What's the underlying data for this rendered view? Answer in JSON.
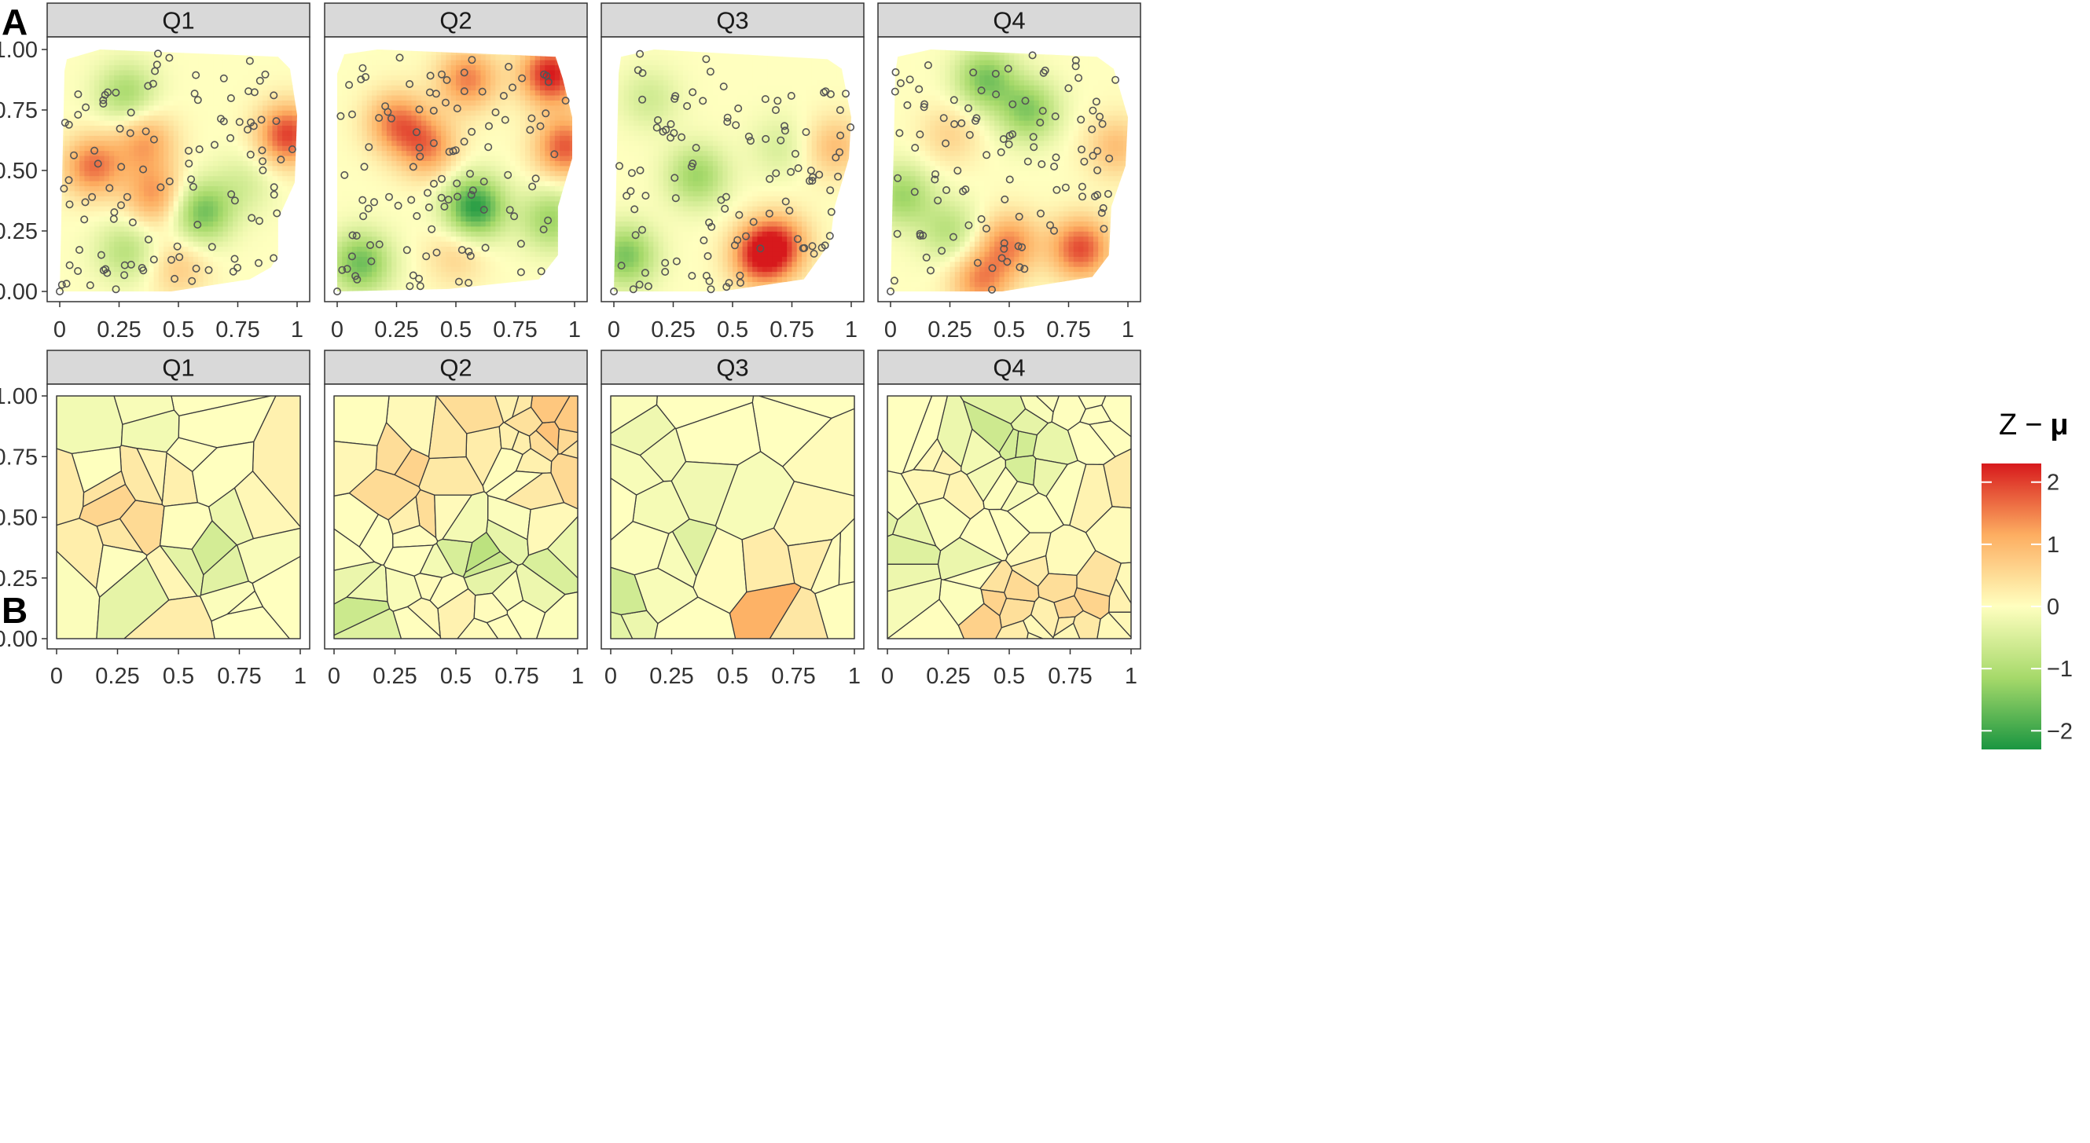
{
  "chart_data": [
    {
      "panel_label": "A",
      "type": "heatmap",
      "facets": [
        "Q1",
        "Q2",
        "Q3",
        "Q4"
      ],
      "x_ticks": [
        "0",
        "0.25",
        "0.5",
        "0.75",
        "1"
      ],
      "y_ticks": [
        "0.00",
        "0.25",
        "0.50",
        "0.75",
        "1.00"
      ],
      "xlim": [
        0,
        1
      ],
      "ylim": [
        0,
        1
      ],
      "points_shown": true,
      "hotspots": [
        [
          {
            "x": 0.14,
            "y": 0.52,
            "v": 1.6
          },
          {
            "x": 0.36,
            "y": 0.62,
            "v": 1.2
          },
          {
            "x": 0.4,
            "y": 0.4,
            "v": 1.3
          },
          {
            "x": 0.96,
            "y": 0.65,
            "v": 2.0
          },
          {
            "x": 0.6,
            "y": 0.33,
            "v": -1.6
          },
          {
            "x": 0.28,
            "y": 0.82,
            "v": -1.1
          },
          {
            "x": 0.28,
            "y": 0.17,
            "v": -0.9
          },
          {
            "x": 0.78,
            "y": 0.45,
            "v": -0.5
          },
          {
            "x": 0.5,
            "y": 0.1,
            "v": 0.7
          }
        ],
        [
          {
            "x": 0.9,
            "y": 0.9,
            "v": 2.3
          },
          {
            "x": 0.55,
            "y": 0.88,
            "v": 1.5
          },
          {
            "x": 0.25,
            "y": 0.7,
            "v": 1.5
          },
          {
            "x": 0.38,
            "y": 0.6,
            "v": 1.4
          },
          {
            "x": 0.96,
            "y": 0.6,
            "v": 1.8
          },
          {
            "x": 0.58,
            "y": 0.35,
            "v": -2.2
          },
          {
            "x": 0.1,
            "y": 0.12,
            "v": -1.6
          },
          {
            "x": 0.9,
            "y": 0.3,
            "v": -1.2
          },
          {
            "x": 0.5,
            "y": 0.15,
            "v": 0.6
          }
        ],
        [
          {
            "x": 0.62,
            "y": 0.15,
            "v": 2.0
          },
          {
            "x": 0.7,
            "y": 0.2,
            "v": 1.4
          },
          {
            "x": 0.35,
            "y": 0.48,
            "v": -1.2
          },
          {
            "x": 0.05,
            "y": 0.15,
            "v": -1.5
          },
          {
            "x": 0.93,
            "y": 0.6,
            "v": 0.9
          },
          {
            "x": 0.7,
            "y": 0.6,
            "v": -0.5
          },
          {
            "x": 0.15,
            "y": 0.8,
            "v": -0.6
          }
        ],
        [
          {
            "x": 0.4,
            "y": 0.88,
            "v": -1.5
          },
          {
            "x": 0.58,
            "y": 0.75,
            "v": -1.4
          },
          {
            "x": 0.05,
            "y": 0.4,
            "v": -1.2
          },
          {
            "x": 0.25,
            "y": 0.25,
            "v": -0.9
          },
          {
            "x": 0.8,
            "y": 0.18,
            "v": 1.9
          },
          {
            "x": 0.5,
            "y": 0.2,
            "v": 1.4
          },
          {
            "x": 0.38,
            "y": 0.05,
            "v": 1.4
          },
          {
            "x": 0.95,
            "y": 0.6,
            "v": 0.9
          },
          {
            "x": 0.25,
            "y": 0.65,
            "v": 0.6
          }
        ]
      ],
      "hull": [
        [
          [
            0.02,
            0.91
          ],
          [
            0.03,
            0.96
          ],
          [
            0.17,
            1.0
          ],
          [
            0.92,
            0.97
          ],
          [
            0.97,
            0.92
          ],
          [
            1.0,
            0.73
          ],
          [
            0.99,
            0.45
          ],
          [
            0.92,
            0.3
          ],
          [
            0.92,
            0.15
          ],
          [
            0.89,
            0.1
          ],
          [
            0.8,
            0.05
          ],
          [
            0.47,
            0.0
          ],
          [
            0.0,
            0.0
          ]
        ],
        [
          [
            0.0,
            0.9
          ],
          [
            0.03,
            0.98
          ],
          [
            0.17,
            1.0
          ],
          [
            0.92,
            0.97
          ],
          [
            0.95,
            0.88
          ],
          [
            0.99,
            0.72
          ],
          [
            0.99,
            0.55
          ],
          [
            0.93,
            0.35
          ],
          [
            0.93,
            0.15
          ],
          [
            0.85,
            0.05
          ],
          [
            0.47,
            0.01
          ],
          [
            0.0,
            0.0
          ]
        ],
        [
          [
            0.02,
            0.9
          ],
          [
            0.03,
            0.97
          ],
          [
            0.17,
            1.0
          ],
          [
            0.9,
            0.96
          ],
          [
            0.96,
            0.92
          ],
          [
            1.0,
            0.72
          ],
          [
            0.99,
            0.55
          ],
          [
            0.93,
            0.35
          ],
          [
            0.91,
            0.2
          ],
          [
            0.8,
            0.05
          ],
          [
            0.45,
            0.0
          ],
          [
            0.0,
            0.0
          ]
        ],
        [
          [
            0.02,
            0.9
          ],
          [
            0.03,
            0.97
          ],
          [
            0.17,
            1.0
          ],
          [
            0.87,
            0.97
          ],
          [
            0.94,
            0.92
          ],
          [
            1.0,
            0.72
          ],
          [
            0.99,
            0.52
          ],
          [
            0.93,
            0.35
          ],
          [
            0.92,
            0.15
          ],
          [
            0.85,
            0.06
          ],
          [
            0.47,
            0.0
          ],
          [
            0.0,
            0.0
          ]
        ]
      ]
    },
    {
      "panel_label": "B",
      "type": "heatmap",
      "facets": [
        "Q1",
        "Q2",
        "Q3",
        "Q4"
      ],
      "x_ticks": [
        "0",
        "0.25",
        "0.5",
        "0.75",
        "1"
      ],
      "y_ticks": [
        "0.00",
        "0.25",
        "0.50",
        "0.75",
        "1.00"
      ],
      "xlim": [
        0,
        1
      ],
      "ylim": [
        0,
        1
      ],
      "cells": "voronoi"
    }
  ],
  "legend": {
    "title_var": "Z",
    "title_op": "−",
    "title_mu": "μ",
    "ticks": [
      "2",
      "1",
      "0",
      "−1",
      "−2"
    ],
    "range": [
      -2.3,
      2.3
    ],
    "colors": [
      "#1a9641",
      "#a6d96a",
      "#ffffbf",
      "#fdae61",
      "#d7191c"
    ]
  }
}
